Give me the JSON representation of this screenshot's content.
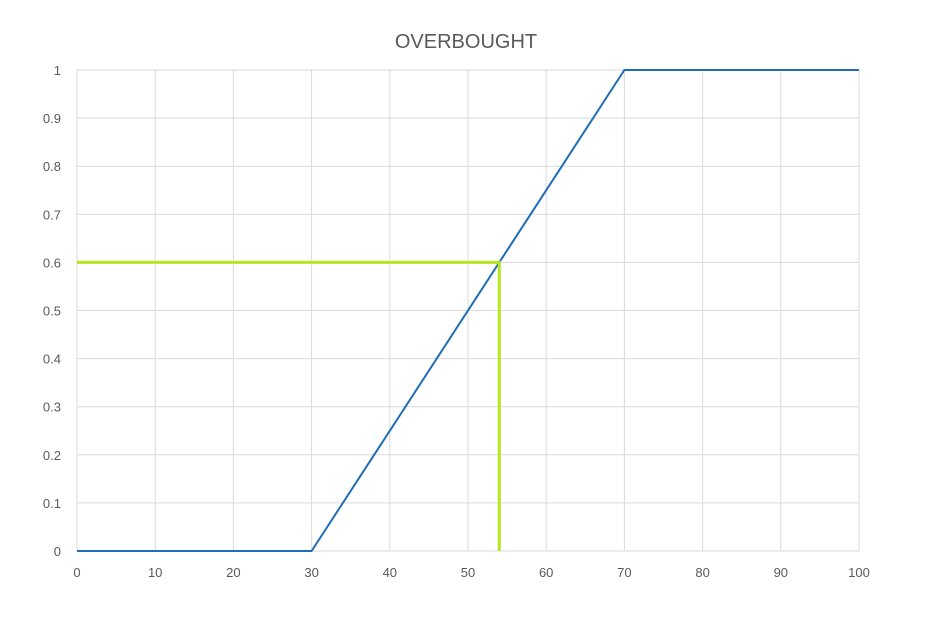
{
  "chart_data": {
    "type": "line",
    "title": "OVERBOUGHT",
    "xlabel": "",
    "ylabel": "",
    "xlim": [
      0,
      100
    ],
    "ylim": [
      0,
      1
    ],
    "x_ticks": [
      0,
      10,
      20,
      30,
      40,
      50,
      60,
      70,
      80,
      90,
      100
    ],
    "y_ticks": [
      0,
      0.1,
      0.2,
      0.3,
      0.4,
      0.5,
      0.6,
      0.7,
      0.8,
      0.9,
      1
    ],
    "x_tick_labels": [
      "0",
      "10",
      "20",
      "30",
      "40",
      "50",
      "60",
      "70",
      "80",
      "90",
      "100"
    ],
    "y_tick_labels": [
      "0",
      "0.1",
      "0.2",
      "0.3",
      "0.4",
      "0.5",
      "0.6",
      "0.7",
      "0.8",
      "0.9",
      "1"
    ],
    "grid": true,
    "legend": "none",
    "series": [
      {
        "color": "#1f6eb5",
        "points": [
          [
            0,
            0
          ],
          [
            30,
            0
          ],
          [
            70,
            1
          ],
          [
            100,
            1
          ]
        ]
      }
    ],
    "annotation": {
      "color": "#b5e61d",
      "points": [
        [
          0,
          0.6
        ],
        [
          54,
          0.6
        ],
        [
          54,
          0
        ]
      ]
    }
  }
}
